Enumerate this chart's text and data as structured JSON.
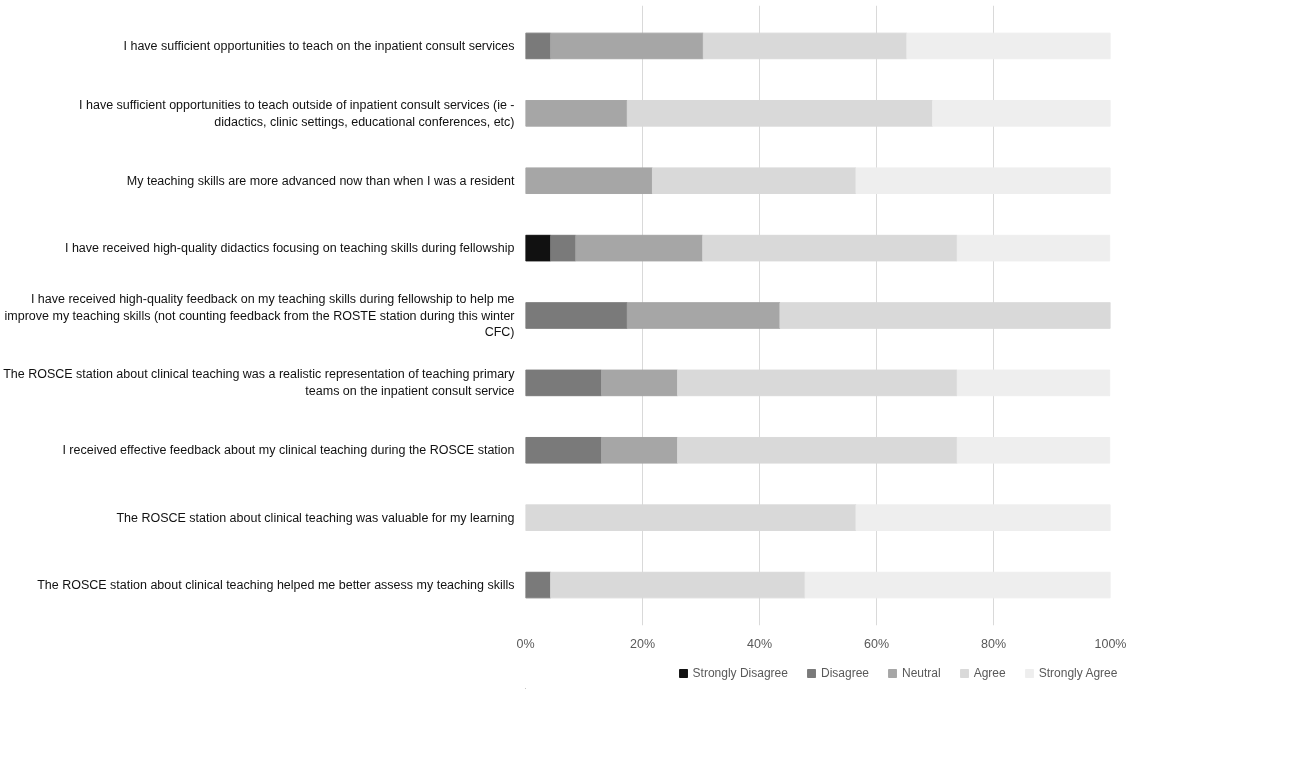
{
  "chart_data": {
    "type": "bar",
    "orientation": "horizontal",
    "stacked": true,
    "categories": [
      "I have sufficient opportunities to teach on the inpatient consult services",
      "I have sufficient opportunities to teach outside of inpatient consult services (ie - didactics, clinic settings, educational conferences, etc)",
      "My teaching skills are more advanced now than when I was a resident",
      "I have received high-quality didactics focusing on teaching skills during fellowship",
      "I have received high-quality feedback on my teaching skills during fellowship to help me improve my teaching skills (not counting feedback from the ROSTE station during this winter CFC)",
      "The ROSCE station about clinical teaching was a realistic representation of teaching primary teams on the inpatient consult service",
      "I received effective feedback about my clinical teaching during the ROSCE station",
      "The ROSCE station about clinical teaching was valuable for my learning",
      "The ROSCE station about clinical teaching helped me better assess my teaching skills"
    ],
    "series": [
      {
        "name": "Strongly Disagree",
        "color": "#111111",
        "values": [
          null,
          null,
          null,
          4.3,
          null,
          null,
          null,
          null,
          null
        ]
      },
      {
        "name": "Disagree",
        "color": "#7a7a7a",
        "values": [
          4.3,
          null,
          null,
          4.3,
          17.4,
          13.0,
          13.0,
          null,
          4.3
        ]
      },
      {
        "name": "Neutral",
        "color": "#a6a6a6",
        "values": [
          26.1,
          17.4,
          21.7,
          21.7,
          26.1,
          13.0,
          13.0,
          null,
          null
        ]
      },
      {
        "name": "Agree",
        "color": "#d9d9d9",
        "values": [
          34.8,
          52.2,
          34.8,
          43.5,
          56.5,
          47.8,
          47.8,
          56.5,
          43.5
        ]
      },
      {
        "name": "Strongly Agree",
        "color": "#eeeeee",
        "values": [
          34.8,
          30.4,
          43.5,
          26.1,
          null,
          26.1,
          26.1,
          43.5,
          52.2
        ]
      }
    ],
    "xlim": [
      0,
      100
    ],
    "xticks": [
      {
        "value": 0,
        "label": "0%"
      },
      {
        "value": 20,
        "label": "20%"
      },
      {
        "value": 40,
        "label": "40%"
      },
      {
        "value": 60,
        "label": "60%"
      },
      {
        "value": 80,
        "label": "80%"
      },
      {
        "value": 100,
        "label": "100%"
      }
    ],
    "grid": "x",
    "legend": "bottom"
  }
}
